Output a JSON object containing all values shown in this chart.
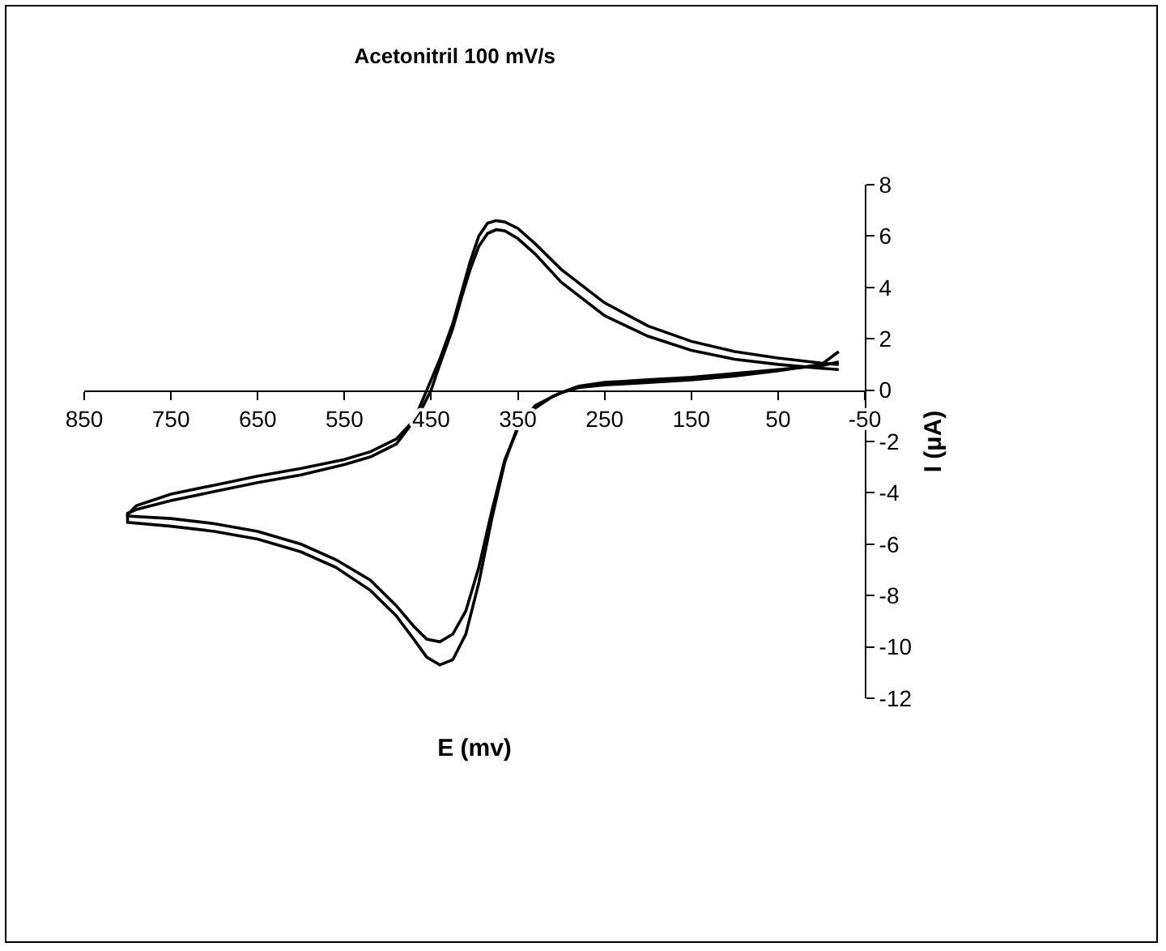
{
  "chart_data": {
    "type": "line",
    "title": "Acetonitril 100 mV/s",
    "xlabel": "E (mv)",
    "ylabel": "I (μA)",
    "xlim": [
      850,
      -50
    ],
    "xticks": [
      850,
      750,
      650,
      550,
      450,
      350,
      250,
      150,
      50,
      -50
    ],
    "ylim": [
      -12,
      8
    ],
    "yticks": [
      -12,
      -10,
      -8,
      -6,
      -4,
      -2,
      0,
      2,
      4,
      6,
      8
    ],
    "marker": "none",
    "line_style": "solid",
    "series": [
      {
        "color": "#000000",
        "x": [
          -20,
          0,
          50,
          100,
          150,
          200,
          250,
          300,
          330,
          350,
          365,
          375,
          385,
          395,
          405,
          415,
          425,
          440,
          455,
          470,
          490,
          520,
          550,
          600,
          650,
          700,
          750,
          790,
          800,
          800,
          750,
          700,
          650,
          600,
          560,
          520,
          490,
          470,
          455,
          440,
          425,
          410,
          395,
          380,
          365,
          350,
          330,
          310,
          300,
          280,
          250,
          200,
          150,
          100,
          50,
          0,
          -20
        ],
        "values": [
          1.0,
          1.05,
          1.25,
          1.5,
          1.9,
          2.5,
          3.4,
          4.7,
          5.7,
          6.3,
          6.55,
          6.6,
          6.5,
          6.0,
          5.0,
          3.8,
          2.6,
          1.2,
          0.0,
          -1.2,
          -2.1,
          -2.6,
          -2.9,
          -3.3,
          -3.6,
          -3.95,
          -4.3,
          -4.65,
          -4.8,
          -5.15,
          -5.3,
          -5.5,
          -5.8,
          -6.3,
          -6.9,
          -7.8,
          -8.8,
          -9.7,
          -10.4,
          -10.7,
          -10.5,
          -9.5,
          -7.5,
          -5.0,
          -2.8,
          -1.4,
          -0.6,
          -0.25,
          -0.1,
          0.1,
          0.2,
          0.3,
          0.4,
          0.55,
          0.75,
          1.0,
          1.5
        ]
      },
      {
        "color": "#000000",
        "x": [
          -20,
          0,
          50,
          100,
          150,
          200,
          250,
          300,
          330,
          350,
          365,
          375,
          385,
          395,
          405,
          415,
          425,
          440,
          450,
          465,
          490,
          520,
          550,
          600,
          650,
          700,
          750,
          790,
          800,
          800,
          750,
          700,
          650,
          600,
          560,
          520,
          490,
          470,
          455,
          440,
          425,
          410,
          395,
          380,
          365,
          350,
          330,
          310,
          300,
          280,
          250,
          200,
          150,
          100,
          50,
          0,
          -20
        ],
        "values": [
          0.8,
          0.85,
          1.0,
          1.2,
          1.55,
          2.1,
          2.9,
          4.2,
          5.3,
          5.9,
          6.2,
          6.25,
          6.1,
          5.6,
          4.7,
          3.6,
          2.4,
          1.0,
          0.0,
          -1.0,
          -1.9,
          -2.4,
          -2.7,
          -3.05,
          -3.35,
          -3.7,
          -4.05,
          -4.5,
          -4.85,
          -4.9,
          -5.0,
          -5.2,
          -5.5,
          -6.0,
          -6.6,
          -7.4,
          -8.4,
          -9.2,
          -9.7,
          -9.8,
          -9.5,
          -8.6,
          -6.9,
          -4.7,
          -2.7,
          -1.5,
          -0.7,
          -0.25,
          -0.1,
          0.15,
          0.3,
          0.4,
          0.5,
          0.65,
          0.8,
          0.95,
          1.1
        ]
      }
    ]
  }
}
